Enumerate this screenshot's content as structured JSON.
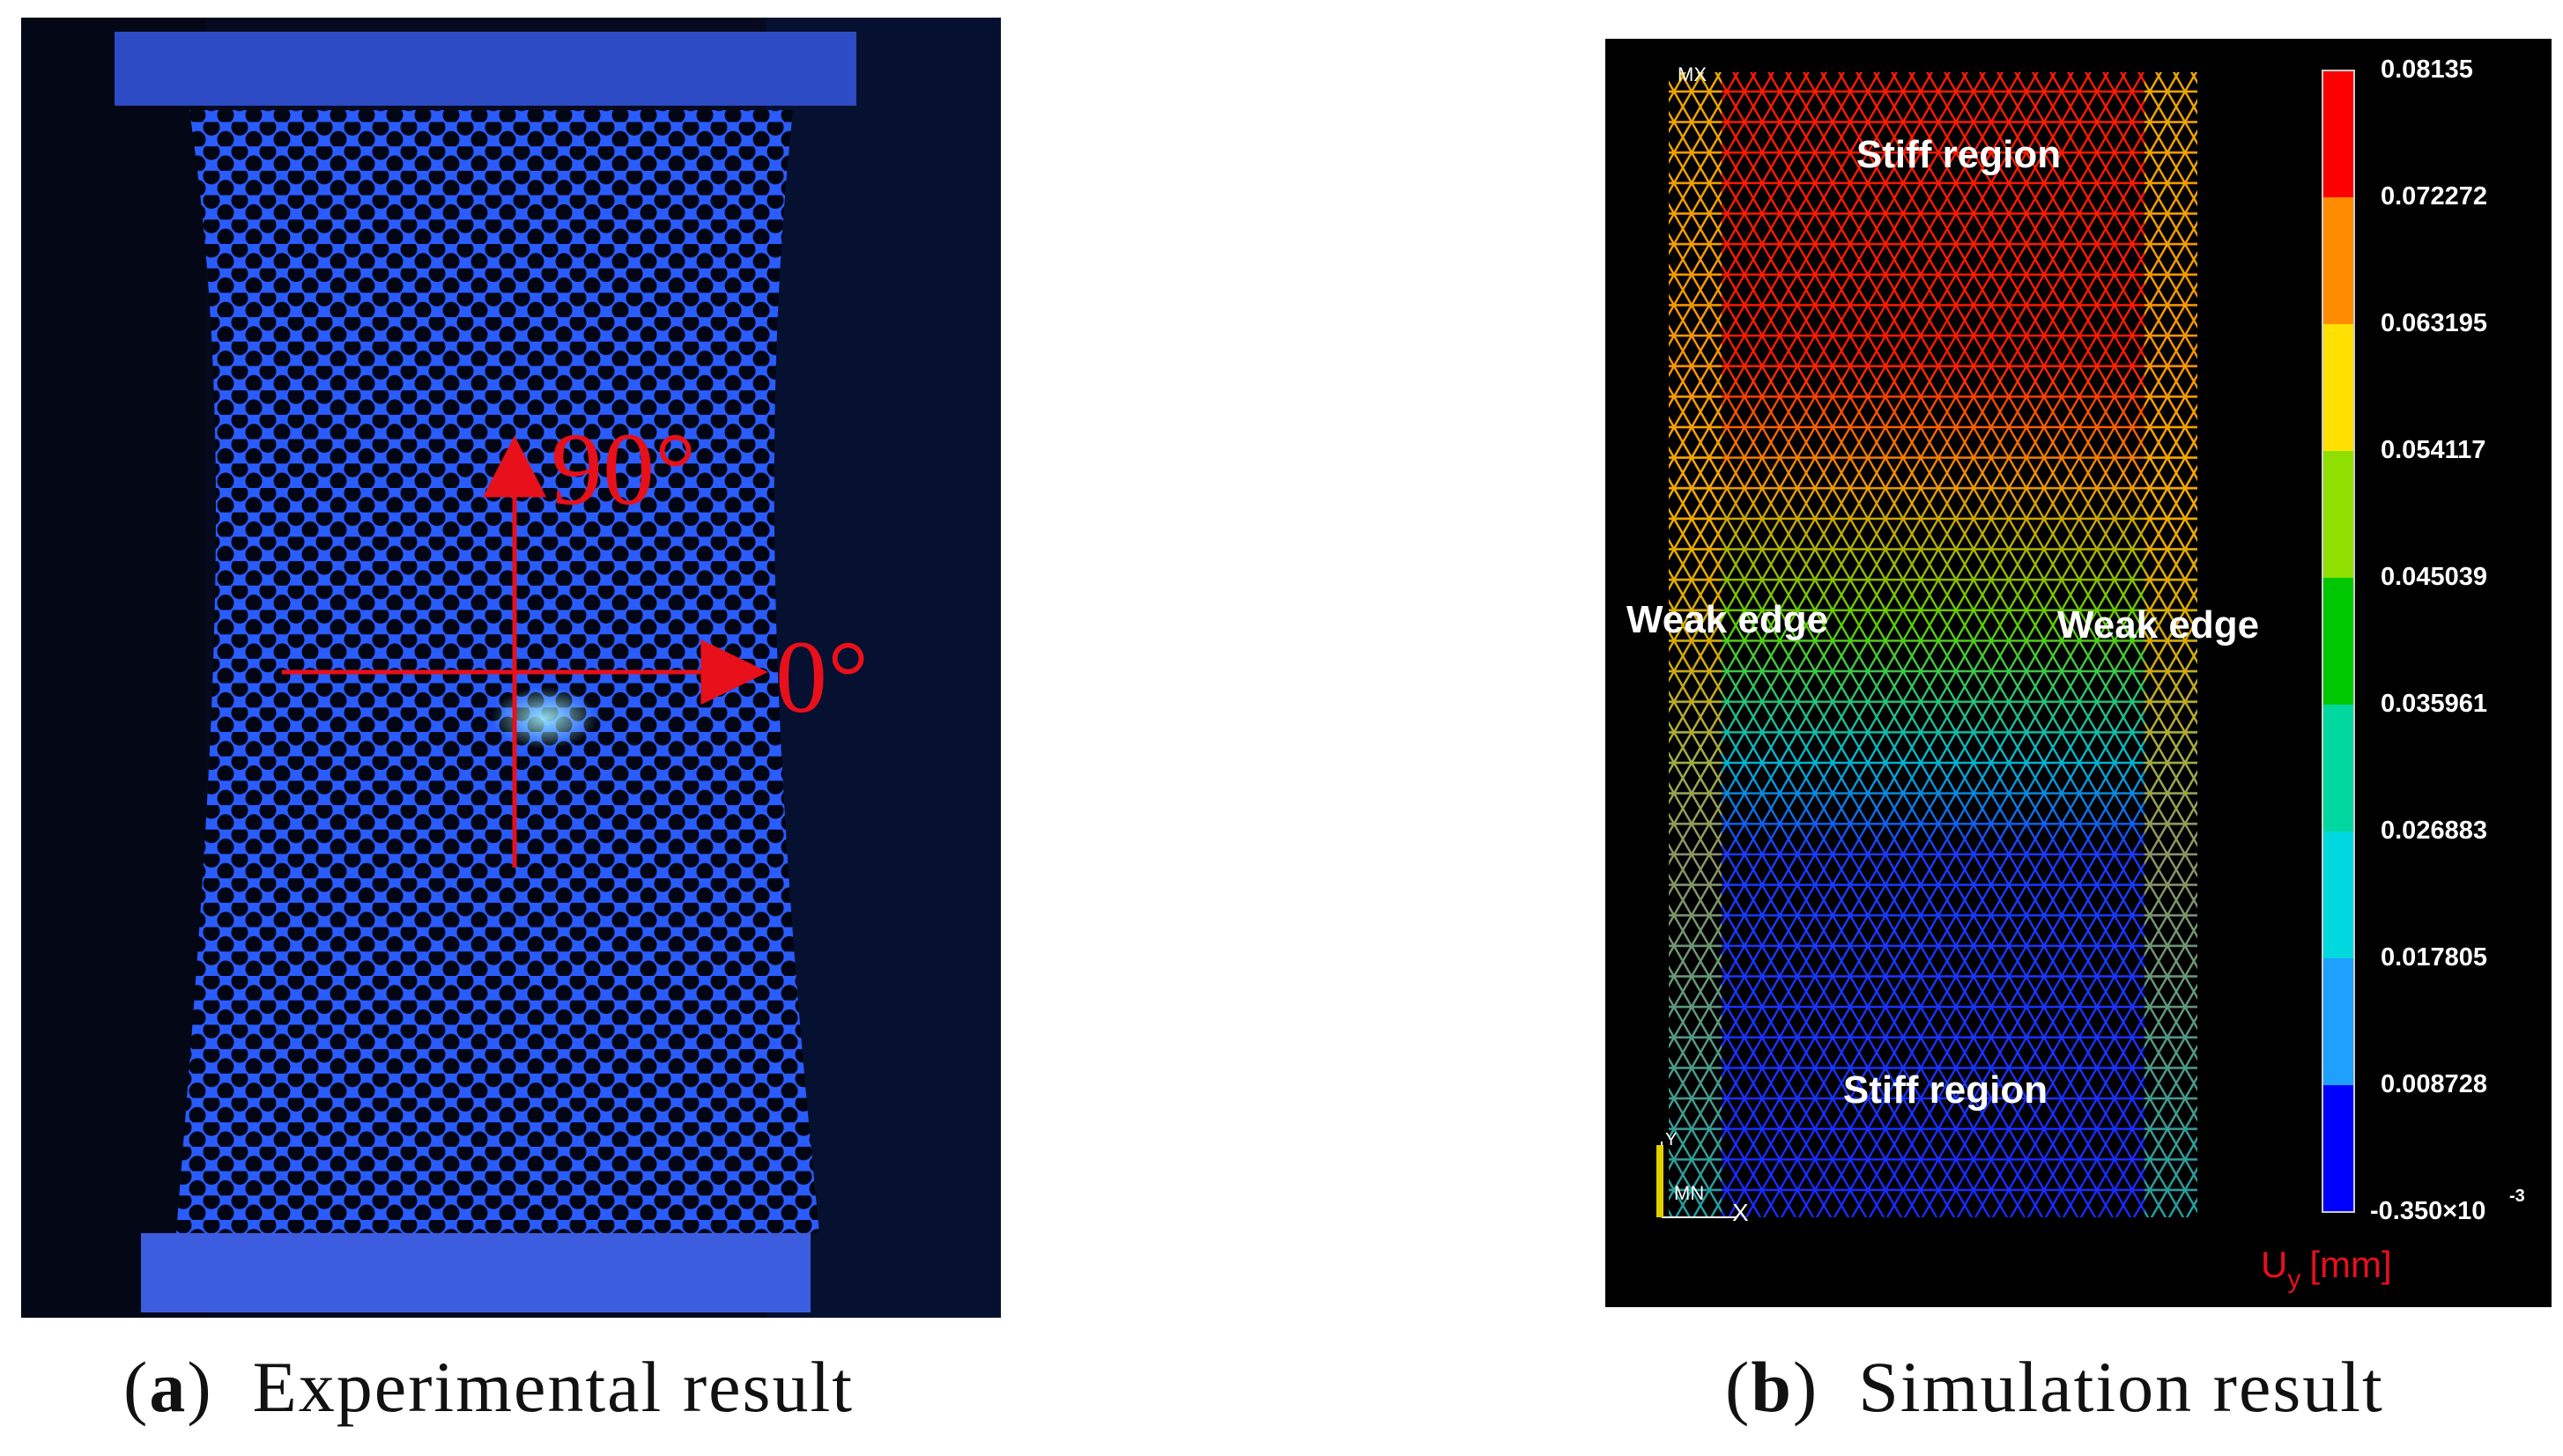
{
  "panel_a": {
    "caption_letter": "a",
    "caption_text": "Experimental result",
    "angle_vertical": "90°",
    "angle_horizontal": "0°"
  },
  "panel_b": {
    "caption_letter": "b",
    "caption_text": "Simulation result",
    "label_top": "Stiff region",
    "label_bottom": "Stiff region",
    "label_left": "Weak edge",
    "label_right": "Weak edge",
    "marker_max": "MX",
    "marker_min": "MN",
    "axis_y": "Y",
    "axis_x": "X",
    "unit_label": "U",
    "unit_subscript": "y",
    "unit_suffix": "[mm]",
    "legend_values": [
      "0.08135",
      "0.072272",
      "0.063195",
      "0.054117",
      "0.045039",
      "0.035961",
      "0.026883",
      "0.017805",
      "0.008728",
      "-0.350×10"
    ],
    "legend_last_exponent": "-3",
    "legend_colors": [
      "#ff0000",
      "#ff8c00",
      "#ffe000",
      "#8fe000",
      "#00c800",
      "#00d8a0",
      "#00d8e0",
      "#1fa0ff",
      "#0000ff"
    ]
  }
}
